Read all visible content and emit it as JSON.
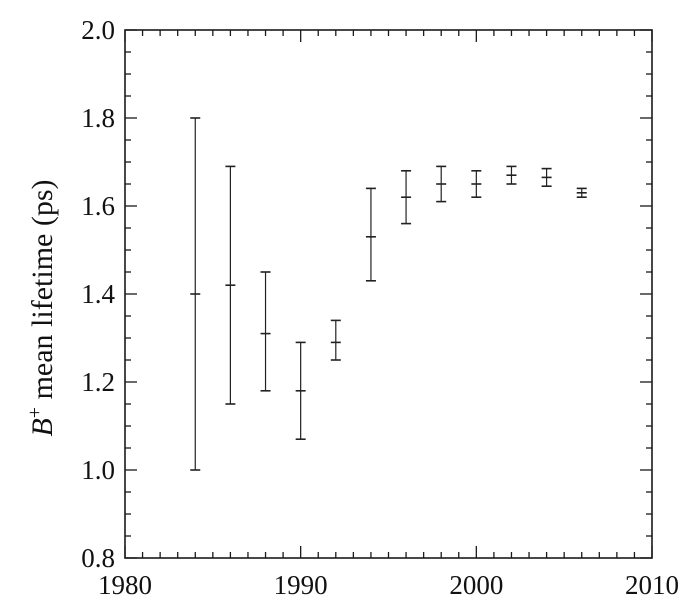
{
  "chart_data": {
    "type": "scatter",
    "style": "error-bars",
    "ylabel_italic": "B",
    "ylabel_sup": "+",
    "ylabel_rest": " mean lifetime (ps)",
    "xlabel": "",
    "title": "",
    "xlim": [
      1980,
      2010
    ],
    "ylim": [
      0.8,
      2.0
    ],
    "xticks": [
      1980,
      1990,
      2000,
      2010
    ],
    "yticks": [
      0.8,
      1.0,
      1.2,
      1.4,
      1.6,
      1.8,
      2.0
    ],
    "ytick_labels": [
      "0.8",
      "1.0",
      "1.2",
      "1.4",
      "1.6",
      "1.8",
      "2.0"
    ],
    "grid": false,
    "legend": "none",
    "points": [
      {
        "x": 1984,
        "y": 1.4,
        "low": 1.0,
        "high": 1.8
      },
      {
        "x": 1986,
        "y": 1.42,
        "low": 1.15,
        "high": 1.69
      },
      {
        "x": 1988,
        "y": 1.31,
        "low": 1.18,
        "high": 1.45
      },
      {
        "x": 1990,
        "y": 1.18,
        "low": 1.07,
        "high": 1.29
      },
      {
        "x": 1992,
        "y": 1.29,
        "low": 1.25,
        "high": 1.34
      },
      {
        "x": 1994,
        "y": 1.53,
        "low": 1.43,
        "high": 1.64
      },
      {
        "x": 1996,
        "y": 1.62,
        "low": 1.56,
        "high": 1.68
      },
      {
        "x": 1998,
        "y": 1.65,
        "low": 1.61,
        "high": 1.69
      },
      {
        "x": 2000,
        "y": 1.65,
        "low": 1.62,
        "high": 1.68
      },
      {
        "x": 2002,
        "y": 1.67,
        "low": 1.65,
        "high": 1.69
      },
      {
        "x": 2004,
        "y": 1.665,
        "low": 1.645,
        "high": 1.685
      },
      {
        "x": 2006,
        "y": 1.63,
        "low": 1.62,
        "high": 1.64
      }
    ],
    "colors": {
      "axis": "#1a1a1a",
      "marks": "#222222",
      "background": "#ffffff"
    }
  }
}
